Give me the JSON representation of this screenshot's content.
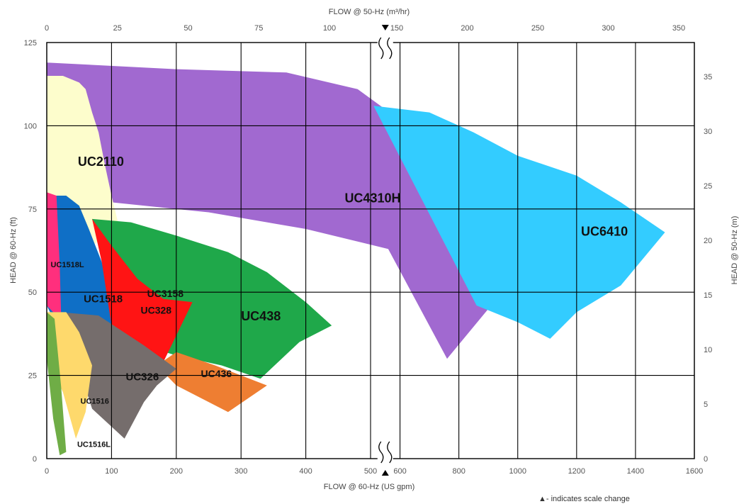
{
  "chart_data": {
    "type": "area",
    "title": "",
    "x_top_label": "FLOW @ 50-Hz (m³/hr)",
    "x_bottom_label": "FLOW @ 60-Hz (US gpm)",
    "y_left_label": "HEAD @ 60-Hz (ft)",
    "y_right_label": "HEAD @ 50-Hz (m)",
    "note": "▲- indicates scale change",
    "x_bottom_ticks": [
      0,
      100,
      200,
      300,
      400,
      500,
      600,
      800,
      1000,
      1200,
      1400,
      1600
    ],
    "x_top_ticks": [
      0,
      25,
      50,
      75,
      100,
      150,
      200,
      250,
      300,
      350
    ],
    "y_left_ticks": [
      0,
      25,
      50,
      75,
      100,
      125
    ],
    "y_right_ticks": [
      0,
      5,
      10,
      15,
      20,
      25,
      30,
      35
    ],
    "ylim_ft": [
      0,
      125
    ],
    "ylim_m": [
      0,
      38.1
    ],
    "scale_break_gpm": 550,
    "grid": true,
    "series": [
      {
        "name": "UC4310H",
        "color": "#a169d0",
        "points": [
          [
            0,
            119
          ],
          [
            200,
            117
          ],
          [
            370,
            116
          ],
          [
            480,
            111
          ],
          [
            580,
            103
          ],
          [
            700,
            94
          ],
          [
            900,
            81
          ],
          [
            1080,
            65
          ],
          [
            900,
            45
          ],
          [
            760,
            30
          ],
          [
            560,
            63
          ],
          [
            400,
            69
          ],
          [
            250,
            74
          ],
          [
            0,
            79
          ]
        ]
      },
      {
        "name": "UC6410",
        "color": "#33ccff",
        "points": [
          [
            510,
            106
          ],
          [
            700,
            104
          ],
          [
            850,
            98
          ],
          [
            1000,
            91
          ],
          [
            1200,
            85
          ],
          [
            1350,
            77
          ],
          [
            1500,
            68
          ],
          [
            1350,
            52
          ],
          [
            1200,
            44
          ],
          [
            1110,
            36
          ],
          [
            1000,
            41
          ],
          [
            860,
            46
          ]
        ]
      },
      {
        "name": "UC2110",
        "color": "#fdfdcc",
        "points": [
          [
            0,
            115
          ],
          [
            25,
            115
          ],
          [
            50,
            113
          ],
          [
            60,
            111
          ],
          [
            70,
            104
          ],
          [
            80,
            98
          ],
          [
            90,
            88
          ],
          [
            100,
            79
          ],
          [
            110,
            71
          ],
          [
            50,
            60
          ],
          [
            0,
            60
          ]
        ]
      },
      {
        "name": "UC438",
        "color": "#1fa84a",
        "points": [
          [
            70,
            72
          ],
          [
            130,
            71
          ],
          [
            200,
            67
          ],
          [
            280,
            62
          ],
          [
            340,
            56
          ],
          [
            400,
            47
          ],
          [
            440,
            40
          ],
          [
            390,
            35
          ],
          [
            330,
            24
          ],
          [
            270,
            28
          ],
          [
            200,
            31
          ],
          [
            130,
            35
          ]
        ]
      },
      {
        "name": "UC436",
        "color": "#ee7e32",
        "points": [
          [
            200,
            32
          ],
          [
            260,
            28
          ],
          [
            340,
            22
          ],
          [
            280,
            14
          ],
          [
            200,
            22
          ],
          [
            170,
            28
          ]
        ]
      },
      {
        "name": "UC1518",
        "color": "#0f6fc6",
        "points": [
          [
            0,
            79
          ],
          [
            30,
            79
          ],
          [
            50,
            76
          ],
          [
            65,
            69
          ],
          [
            85,
            59
          ],
          [
            95,
            50
          ],
          [
            100,
            40
          ],
          [
            15,
            40
          ],
          [
            0,
            46
          ]
        ]
      },
      {
        "name": "UC3158",
        "color": "#ff1414",
        "points": [
          [
            70,
            72
          ],
          [
            100,
            64
          ],
          [
            140,
            54
          ],
          [
            180,
            48
          ],
          [
            225,
            47
          ],
          [
            200,
            37
          ],
          [
            180,
            29
          ],
          [
            100,
            40
          ],
          [
            85,
            59
          ]
        ]
      },
      {
        "name": "UC328",
        "color": "#ff1414",
        "points": []
      },
      {
        "name": "UC1518L",
        "color": "#ff2f7d",
        "points": [
          [
            0,
            80
          ],
          [
            15,
            79
          ],
          [
            20,
            58
          ],
          [
            22,
            44
          ],
          [
            10,
            44
          ],
          [
            0,
            46
          ]
        ]
      },
      {
        "name": "UC326",
        "color": "#756d6c",
        "points": [
          [
            20,
            44
          ],
          [
            80,
            43
          ],
          [
            150,
            34
          ],
          [
            200,
            27
          ],
          [
            170,
            22
          ],
          [
            150,
            17
          ],
          [
            120,
            6
          ],
          [
            70,
            15
          ],
          [
            40,
            33
          ]
        ]
      },
      {
        "name": "UC1516",
        "color": "#fed96c",
        "points": [
          [
            0,
            44
          ],
          [
            30,
            44
          ],
          [
            50,
            38
          ],
          [
            70,
            28
          ],
          [
            60,
            14
          ],
          [
            45,
            6
          ],
          [
            25,
            20
          ],
          [
            0,
            30
          ]
        ]
      },
      {
        "name": "UC1516L",
        "color": "#6fad46",
        "points": [
          [
            0,
            44
          ],
          [
            12,
            42
          ],
          [
            22,
            22
          ],
          [
            30,
            2
          ],
          [
            20,
            1
          ],
          [
            10,
            12
          ],
          [
            0,
            30
          ]
        ]
      }
    ],
    "labels": [
      {
        "text": "UC2110",
        "x": 48,
        "y": 88,
        "size": 18
      },
      {
        "text": "UC4310H",
        "x": 460,
        "y": 77,
        "size": 18
      },
      {
        "text": "UC6410",
        "x": 1215,
        "y": 67,
        "size": 18
      },
      {
        "text": "UC1518L",
        "x": 6,
        "y": 57.5,
        "size": 11
      },
      {
        "text": "UC1518",
        "x": 57,
        "y": 47,
        "size": 15
      },
      {
        "text": "UC3158",
        "x": 155,
        "y": 48.5,
        "size": 14
      },
      {
        "text": "UC328",
        "x": 145,
        "y": 43.5,
        "size": 14
      },
      {
        "text": "UC438",
        "x": 300,
        "y": 41.5,
        "size": 18
      },
      {
        "text": "UC436",
        "x": 238,
        "y": 24.5,
        "size": 14
      },
      {
        "text": "UC326",
        "x": 122,
        "y": 23.5,
        "size": 15
      },
      {
        "text": "UC1516",
        "x": 52,
        "y": 16.5,
        "size": 11
      },
      {
        "text": "UC1516L",
        "x": 47,
        "y": 3.5,
        "size": 11
      }
    ]
  }
}
